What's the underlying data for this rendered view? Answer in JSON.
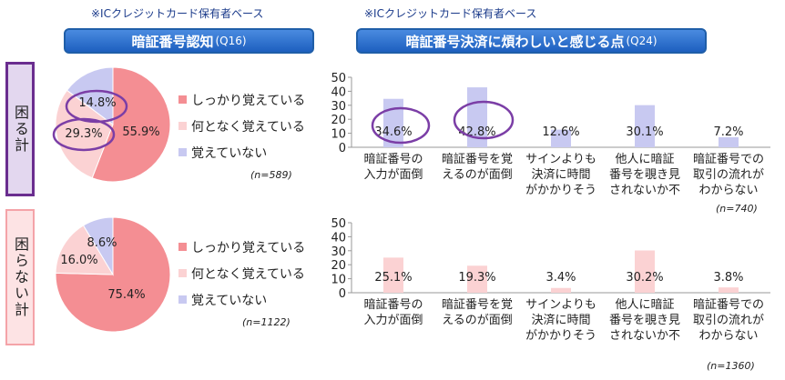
{
  "notes": {
    "base": "※ICクレジットカード保有者ベース"
  },
  "headers": {
    "left": {
      "title": "暗証番号認知",
      "q": "(Q16)"
    },
    "right": {
      "title": "暗証番号決済に煩わしいと感じる点",
      "q": "(Q24)"
    }
  },
  "groups": [
    {
      "label": "困る計",
      "n_pie": "(n=589)",
      "n_bar": "(n=740)"
    },
    {
      "label": "困らない計",
      "n_pie": "(n=1122)",
      "n_bar": "(n=1360)"
    }
  ],
  "legend": [
    "しっかり覚えている",
    "何となく覚えている",
    "覚えていない"
  ],
  "colors": {
    "pie": [
      "#f48e93",
      "#fbd2d3",
      "#c8c9f1"
    ],
    "bar_top": "#c8c9f1",
    "bar_bottom": "#fbd2d3",
    "highlight": "#7b3ea6",
    "side_top_border": "#6a2d8f",
    "side_bottom_border": "#f4a3a8",
    "side_bottom_fill": "#fde3e4"
  },
  "chart_data": [
    {
      "type": "pie",
      "categories": [
        "しっかり覚えている",
        "何となく覚えている",
        "覚えていない"
      ],
      "values": [
        55.9,
        29.3,
        14.8
      ],
      "labels": [
        "55.9%",
        "29.3%",
        "14.8%"
      ]
    },
    {
      "type": "pie",
      "categories": [
        "しっかり覚えている",
        "何となく覚えている",
        "覚えていない"
      ],
      "values": [
        75.4,
        16.0,
        8.6
      ],
      "labels": [
        "75.4%",
        "16.0%",
        "8.6%"
      ]
    },
    {
      "type": "bar",
      "categories": [
        [
          "暗証番号の",
          "入力が面倒"
        ],
        [
          "暗証番号を覚",
          "えるのが面倒"
        ],
        [
          "サインよりも",
          "決済に時間",
          "がかかりそう"
        ],
        [
          "他人に暗証",
          "番号を覗き見",
          "されないか不"
        ],
        [
          "暗証番号での",
          "取引の流れが",
          "わからない"
        ]
      ],
      "values": [
        34.6,
        42.8,
        12.6,
        30.1,
        7.2
      ],
      "labels": [
        "34.6%",
        "42.8%",
        "12.6%",
        "30.1%",
        "7.2%"
      ],
      "ylim": [
        0,
        50
      ],
      "yticks": [
        0,
        10,
        20,
        30,
        40,
        50
      ],
      "grid": false
    },
    {
      "type": "bar",
      "categories": [
        [
          "暗証番号の",
          "入力が面倒"
        ],
        [
          "暗証番号を覚",
          "えるのが面倒"
        ],
        [
          "サインよりも",
          "決済に時間",
          "がかかりそう"
        ],
        [
          "他人に暗証",
          "番号を覗き見",
          "されないか不"
        ],
        [
          "暗証番号での",
          "取引の流れが",
          "わからない"
        ]
      ],
      "values": [
        25.1,
        19.3,
        3.4,
        30.2,
        3.8
      ],
      "labels": [
        "25.1%",
        "19.3%",
        "3.4%",
        "30.2%",
        "3.8%"
      ],
      "ylim": [
        0,
        50
      ],
      "yticks": [
        0,
        10,
        20,
        30,
        40,
        50
      ],
      "grid": false
    }
  ]
}
